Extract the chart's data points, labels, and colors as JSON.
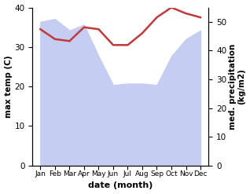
{
  "months": [
    "Jan",
    "Feb",
    "Mar",
    "Apr",
    "May",
    "Jun",
    "Jul",
    "Aug",
    "Sep",
    "Oct",
    "Nov",
    "Dec"
  ],
  "temperature": [
    34.5,
    32.0,
    31.5,
    35.0,
    34.5,
    30.5,
    30.5,
    33.5,
    37.5,
    40.0,
    38.5,
    37.5
  ],
  "precipitation": [
    50.0,
    51.0,
    47.0,
    49.0,
    38.0,
    28.0,
    28.5,
    28.5,
    28.0,
    38.0,
    44.0,
    47.0
  ],
  "temp_color": "#c0393b",
  "precip_fill_color": "#c5cdf2",
  "background_color": "#ffffff",
  "ylabel_left": "max temp (C)",
  "ylabel_right": "med. precipitation\n(kg/m2)",
  "xlabel": "date (month)",
  "ylim_left": [
    0,
    40
  ],
  "ylim_right": [
    0,
    55
  ],
  "yticks_left": [
    0,
    10,
    20,
    30,
    40
  ],
  "yticks_right": [
    0,
    10,
    20,
    30,
    40,
    50
  ]
}
